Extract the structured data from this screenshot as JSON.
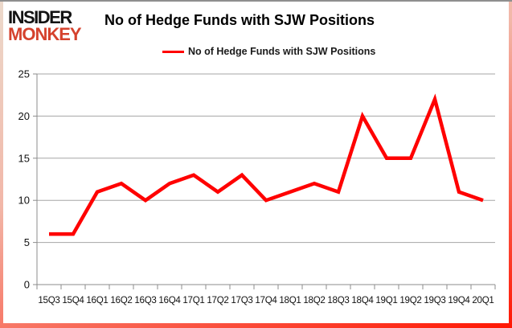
{
  "logo": {
    "line1": "INSIDER",
    "line2": "MONKEY"
  },
  "header": {
    "title": "No of Hedge Funds with SJW Positions"
  },
  "legend": {
    "label": "No of Hedge Funds with SJW Positions",
    "line_color": "#ff0000"
  },
  "colors": {
    "series_red": "#ff0000",
    "logo_red": "#d5422d",
    "grid_gray": "#a6a6a6",
    "axis_gray": "#8c8c8c",
    "text_black": "#000000"
  },
  "chart_data": {
    "type": "line",
    "title": "No of Hedge Funds with SJW Positions",
    "categories": [
      "15Q3",
      "15Q4",
      "16Q1",
      "16Q2",
      "16Q3",
      "16Q4",
      "17Q1",
      "17Q2",
      "17Q3",
      "17Q4",
      "18Q1",
      "18Q2",
      "18Q3",
      "18Q4",
      "19Q1",
      "19Q2",
      "19Q3",
      "19Q4",
      "20Q1"
    ],
    "series": [
      {
        "name": "No of Hedge Funds with SJW Positions",
        "color": "#ff0000",
        "values": [
          6,
          6,
          11,
          12,
          10,
          12,
          13,
          11,
          13,
          10,
          11,
          12,
          11,
          20,
          15,
          15,
          22,
          11,
          10
        ]
      }
    ],
    "xlabel": "",
    "ylabel": "",
    "ylim": [
      0,
      25
    ],
    "yticks": [
      0,
      5,
      10,
      15,
      20,
      25
    ],
    "grid": true,
    "legend_position": "top"
  }
}
